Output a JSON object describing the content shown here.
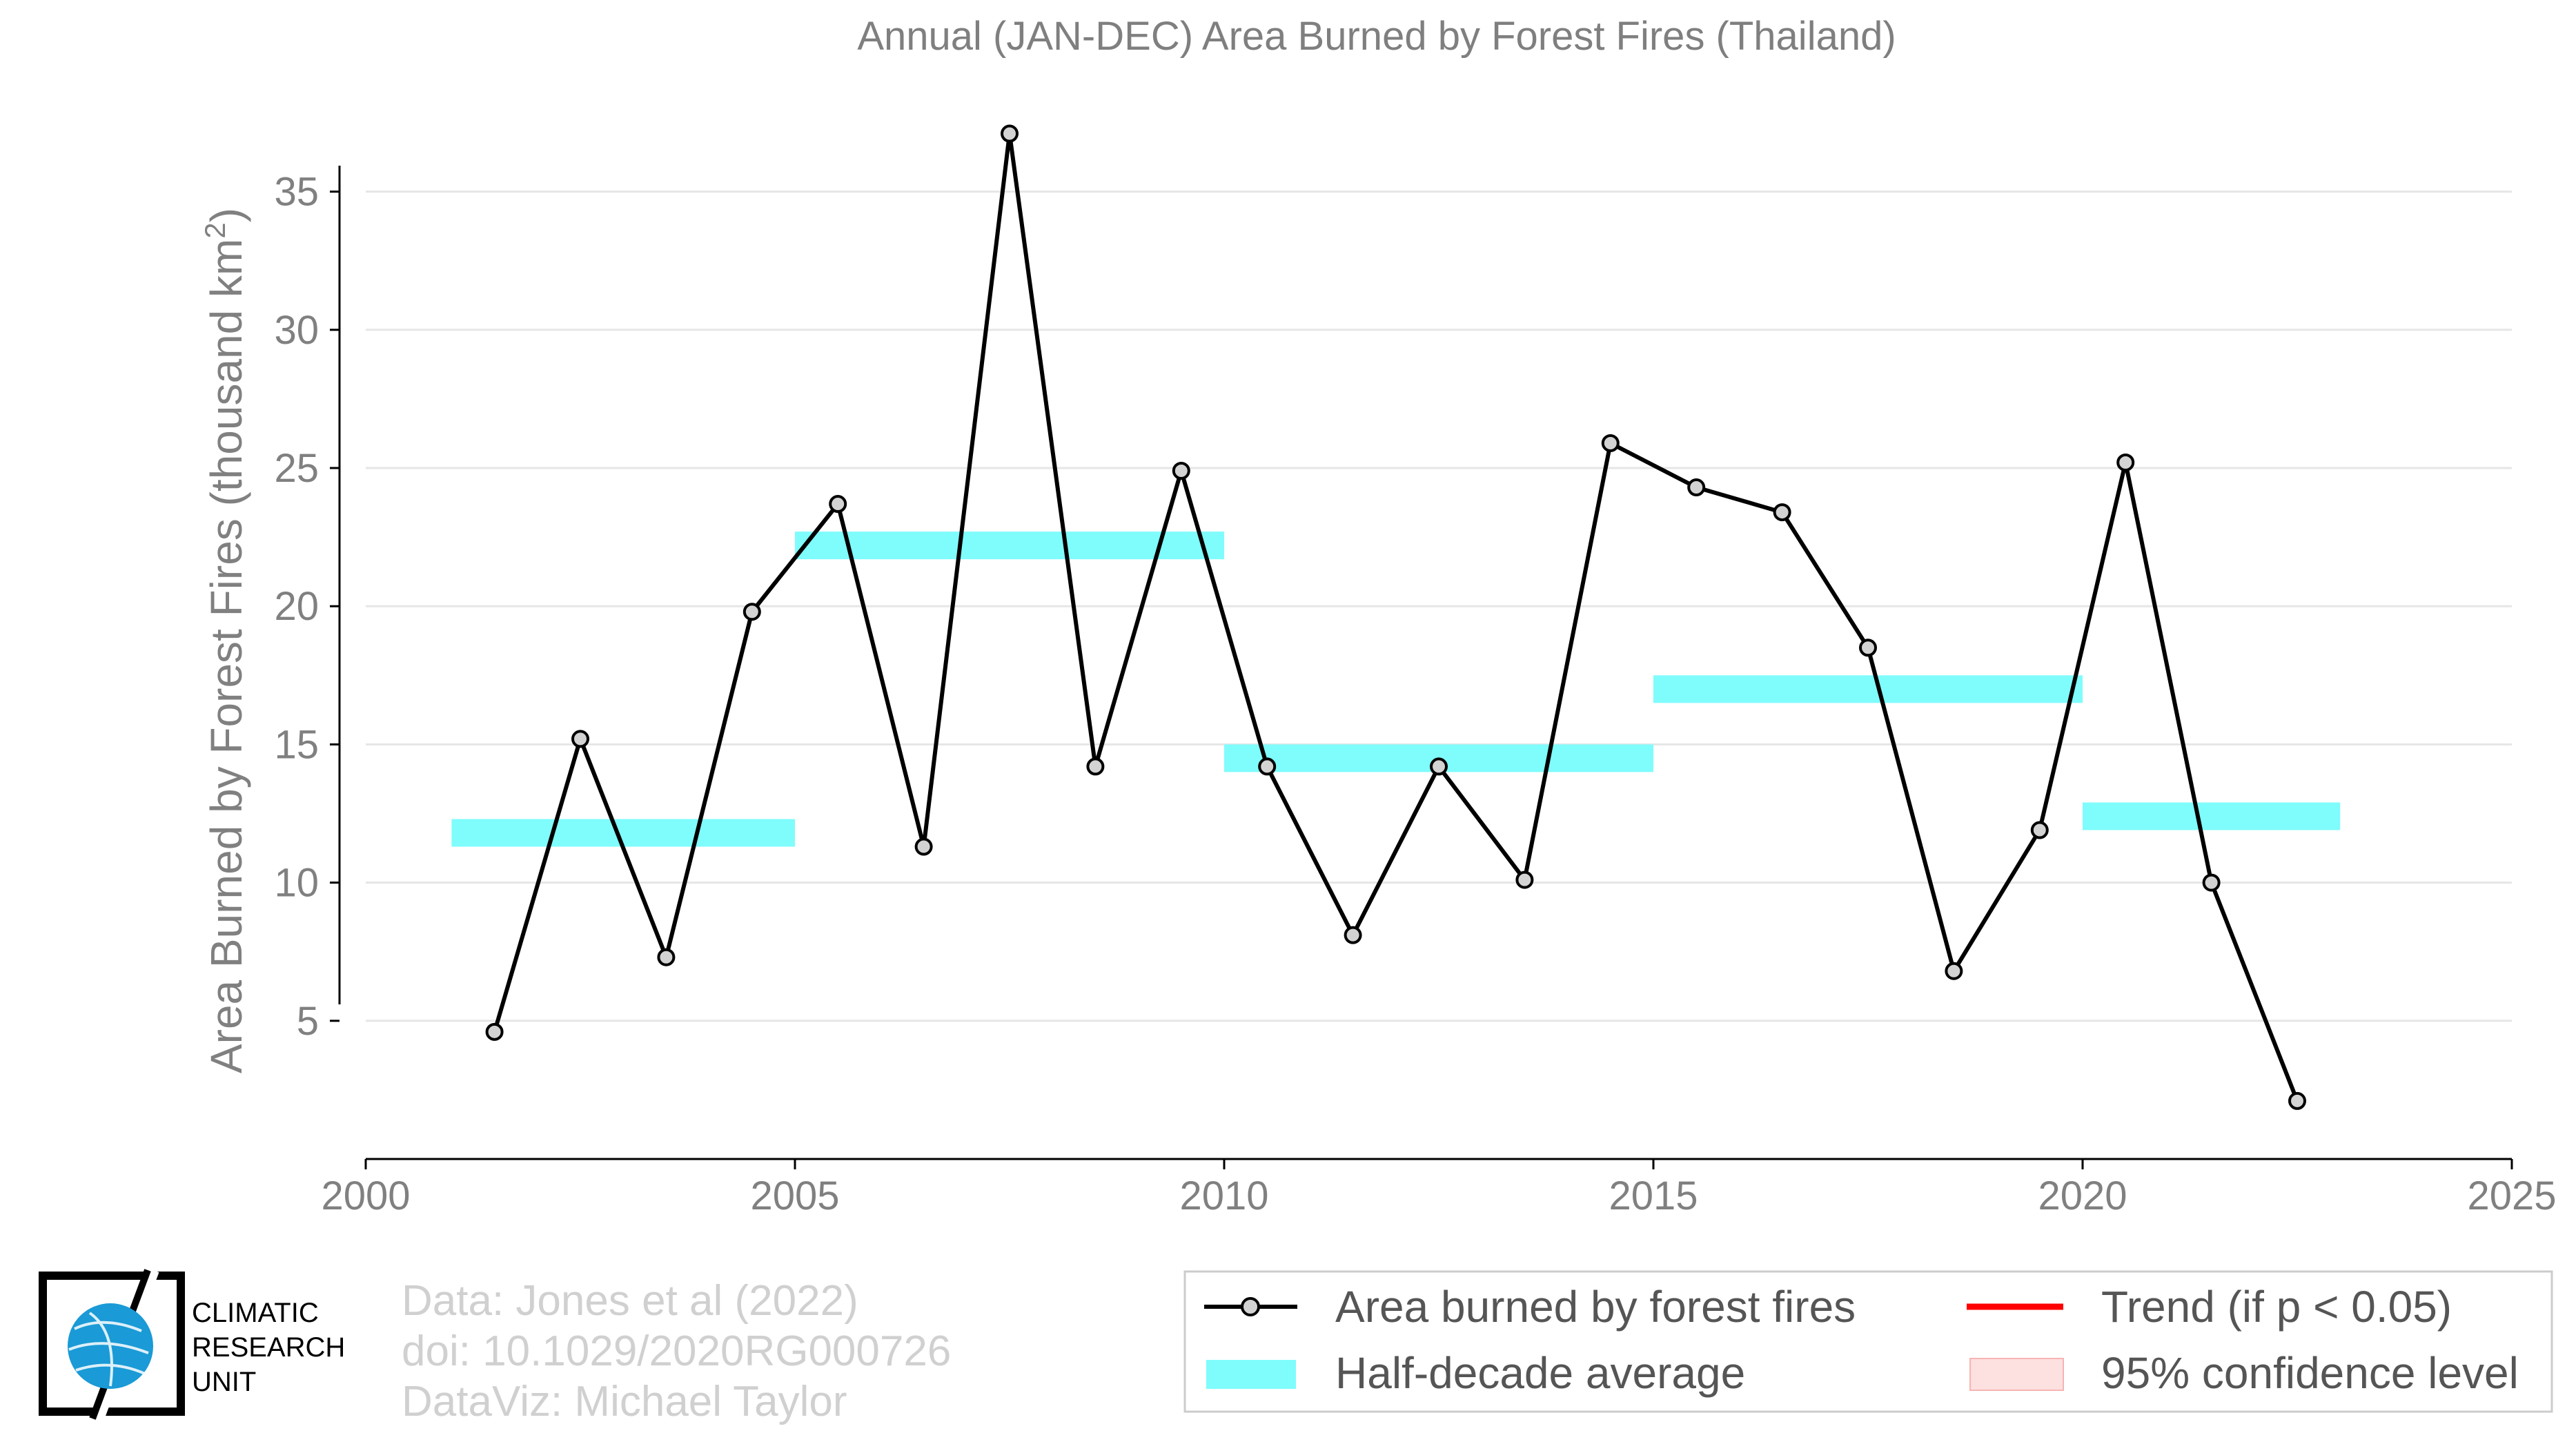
{
  "chart_data": {
    "type": "line",
    "title": "Annual (JAN-DEC) Area Burned by Forest Fires (Thailand)",
    "xlabel": "",
    "ylabel_main": "Area Burned by Forest Fires (thousand km",
    "ylabel_sup": "2",
    "ylabel_close": ")",
    "xlim": [
      2000,
      2025
    ],
    "ylim": [
      0,
      37.5
    ],
    "x_ticks": [
      2000,
      2005,
      2010,
      2015,
      2020,
      2025
    ],
    "y_ticks": [
      5,
      10,
      15,
      20,
      25,
      30,
      35
    ],
    "grid": "horizontal",
    "series": [
      {
        "name": "Area burned by forest fires",
        "color": "#000000",
        "x": [
          2001.5,
          2002.5,
          2003.5,
          2004.5,
          2005.5,
          2006.5,
          2007.5,
          2008.5,
          2009.5,
          2010.5,
          2011.5,
          2012.5,
          2013.5,
          2014.5,
          2015.5,
          2016.5,
          2017.5,
          2018.5,
          2019.5,
          2020.5,
          2021.5,
          2022.5
        ],
        "y": [
          4.6,
          15.2,
          7.3,
          19.8,
          23.7,
          11.3,
          37.1,
          14.2,
          24.9,
          14.2,
          8.1,
          14.2,
          10.1,
          25.9,
          24.3,
          23.4,
          18.5,
          6.8,
          11.9,
          25.2,
          10.0,
          2.1
        ]
      },
      {
        "name": "Half-decade average",
        "color": "#7ffcfc",
        "segments": [
          {
            "x0": 2001,
            "x1": 2005,
            "y": 11.8
          },
          {
            "x0": 2005,
            "x1": 2010,
            "y": 22.2
          },
          {
            "x0": 2010,
            "x1": 2015,
            "y": 14.5
          },
          {
            "x0": 2015,
            "x1": 2020,
            "y": 17.0
          },
          {
            "x0": 2020,
            "x1": 2023,
            "y": 12.4
          }
        ]
      }
    ],
    "legend": {
      "placement": "bottom-right",
      "items": [
        {
          "label": "Area burned by forest fires",
          "kind": "line-marker",
          "color": "#000000"
        },
        {
          "label": "Trend (if p < 0.05)",
          "kind": "line",
          "color": "#ff0000"
        },
        {
          "label": "Half-decade average",
          "kind": "patch",
          "color": "#7ffcfc"
        },
        {
          "label": "95% confidence level",
          "kind": "patch",
          "color": "#fde0e0"
        }
      ]
    }
  },
  "credits": [
    "Data: Jones et al (2022)",
    "doi: 10.1029/2020RG000726",
    "DataViz: Michael Taylor"
  ],
  "logo": {
    "lines": [
      "CLIMATIC",
      "RESEARCH",
      "UNIT"
    ]
  }
}
